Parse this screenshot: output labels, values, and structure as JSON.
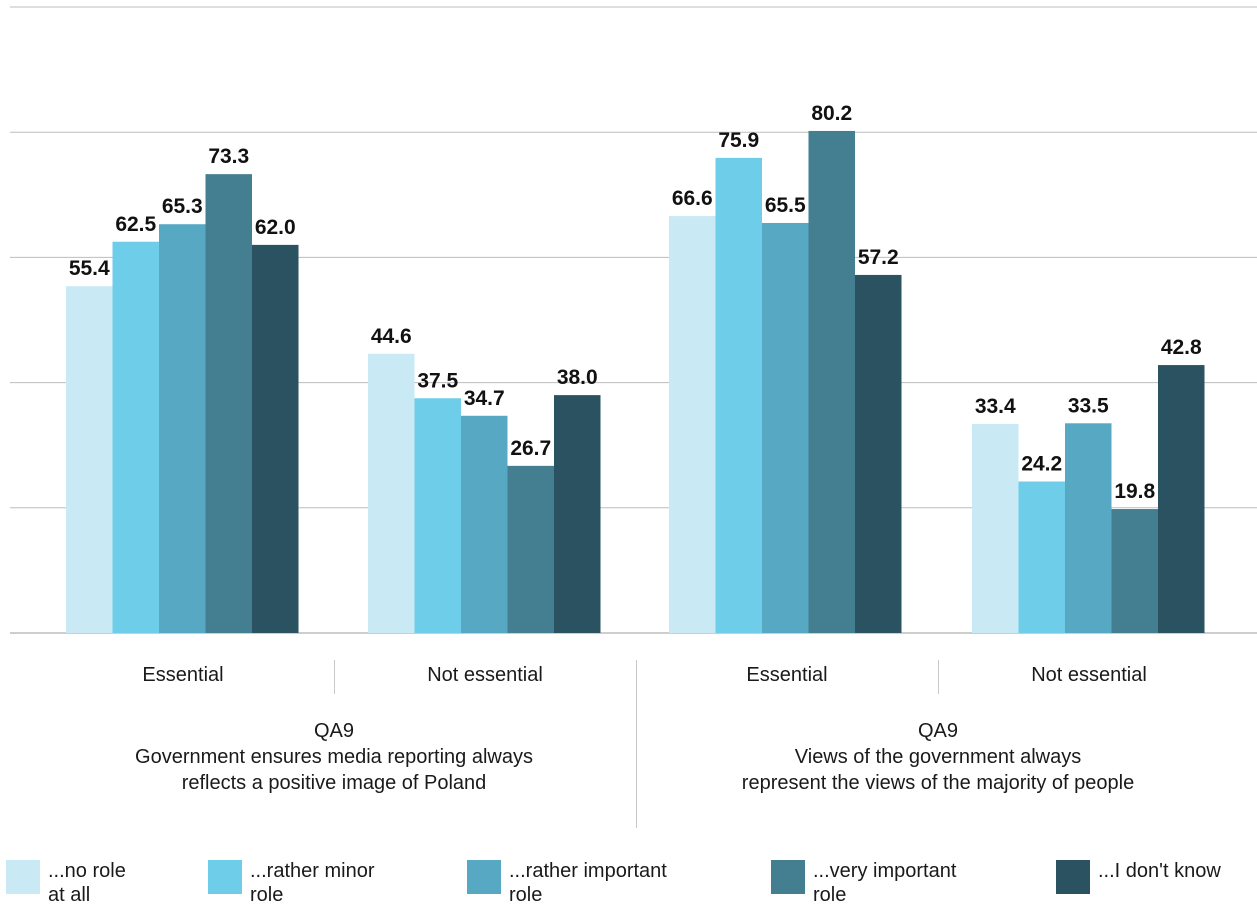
{
  "chart_data": {
    "type": "bar",
    "ylim": [
      0,
      100
    ],
    "grid": true,
    "legend_position": "bottom",
    "categories": [
      "Essential",
      "Not essential",
      "Essential",
      "Not essential"
    ],
    "groups": [
      {
        "code": "QA9",
        "title": "Government ensures media reporting always reflects a positive image of Poland",
        "title_lines": [
          "Government ensures media reporting always",
          "reflects a positive image of Poland"
        ]
      },
      {
        "code": "QA9",
        "title": "Views of the government always represent the views of the majority of people",
        "title_lines": [
          "Views of the government always",
          "represent the views of the majority of people"
        ]
      }
    ],
    "series": [
      {
        "name": "...no role at all",
        "color": "#c9e9f4",
        "values": [
          55.4,
          44.6,
          66.6,
          33.4
        ]
      },
      {
        "name": "...rather minor role",
        "color": "#6ecde8",
        "values": [
          62.5,
          37.5,
          75.9,
          24.2
        ]
      },
      {
        "name": "...rather important role",
        "color": "#57a8c2",
        "values": [
          65.3,
          34.7,
          65.5,
          33.5
        ]
      },
      {
        "name": "...very important role",
        "color": "#437f90",
        "values": [
          73.3,
          26.7,
          80.2,
          19.8
        ]
      },
      {
        "name": "...I don't know",
        "color": "#2a5261",
        "values": [
          62.0,
          38.0,
          57.2,
          42.8
        ]
      }
    ],
    "legend": [
      {
        "line1": "...no role",
        "line2": "at all",
        "color": "#c9e9f4"
      },
      {
        "line1": "...rather minor",
        "line2": "role",
        "color": "#6ecde8"
      },
      {
        "line1": "...rather important",
        "line2": "role",
        "color": "#57a8c2"
      },
      {
        "line1": "...very important",
        "line2": "role",
        "color": "#437f90"
      },
      {
        "line1": "...I don't know",
        "line2": "",
        "color": "#2a5261"
      }
    ]
  }
}
